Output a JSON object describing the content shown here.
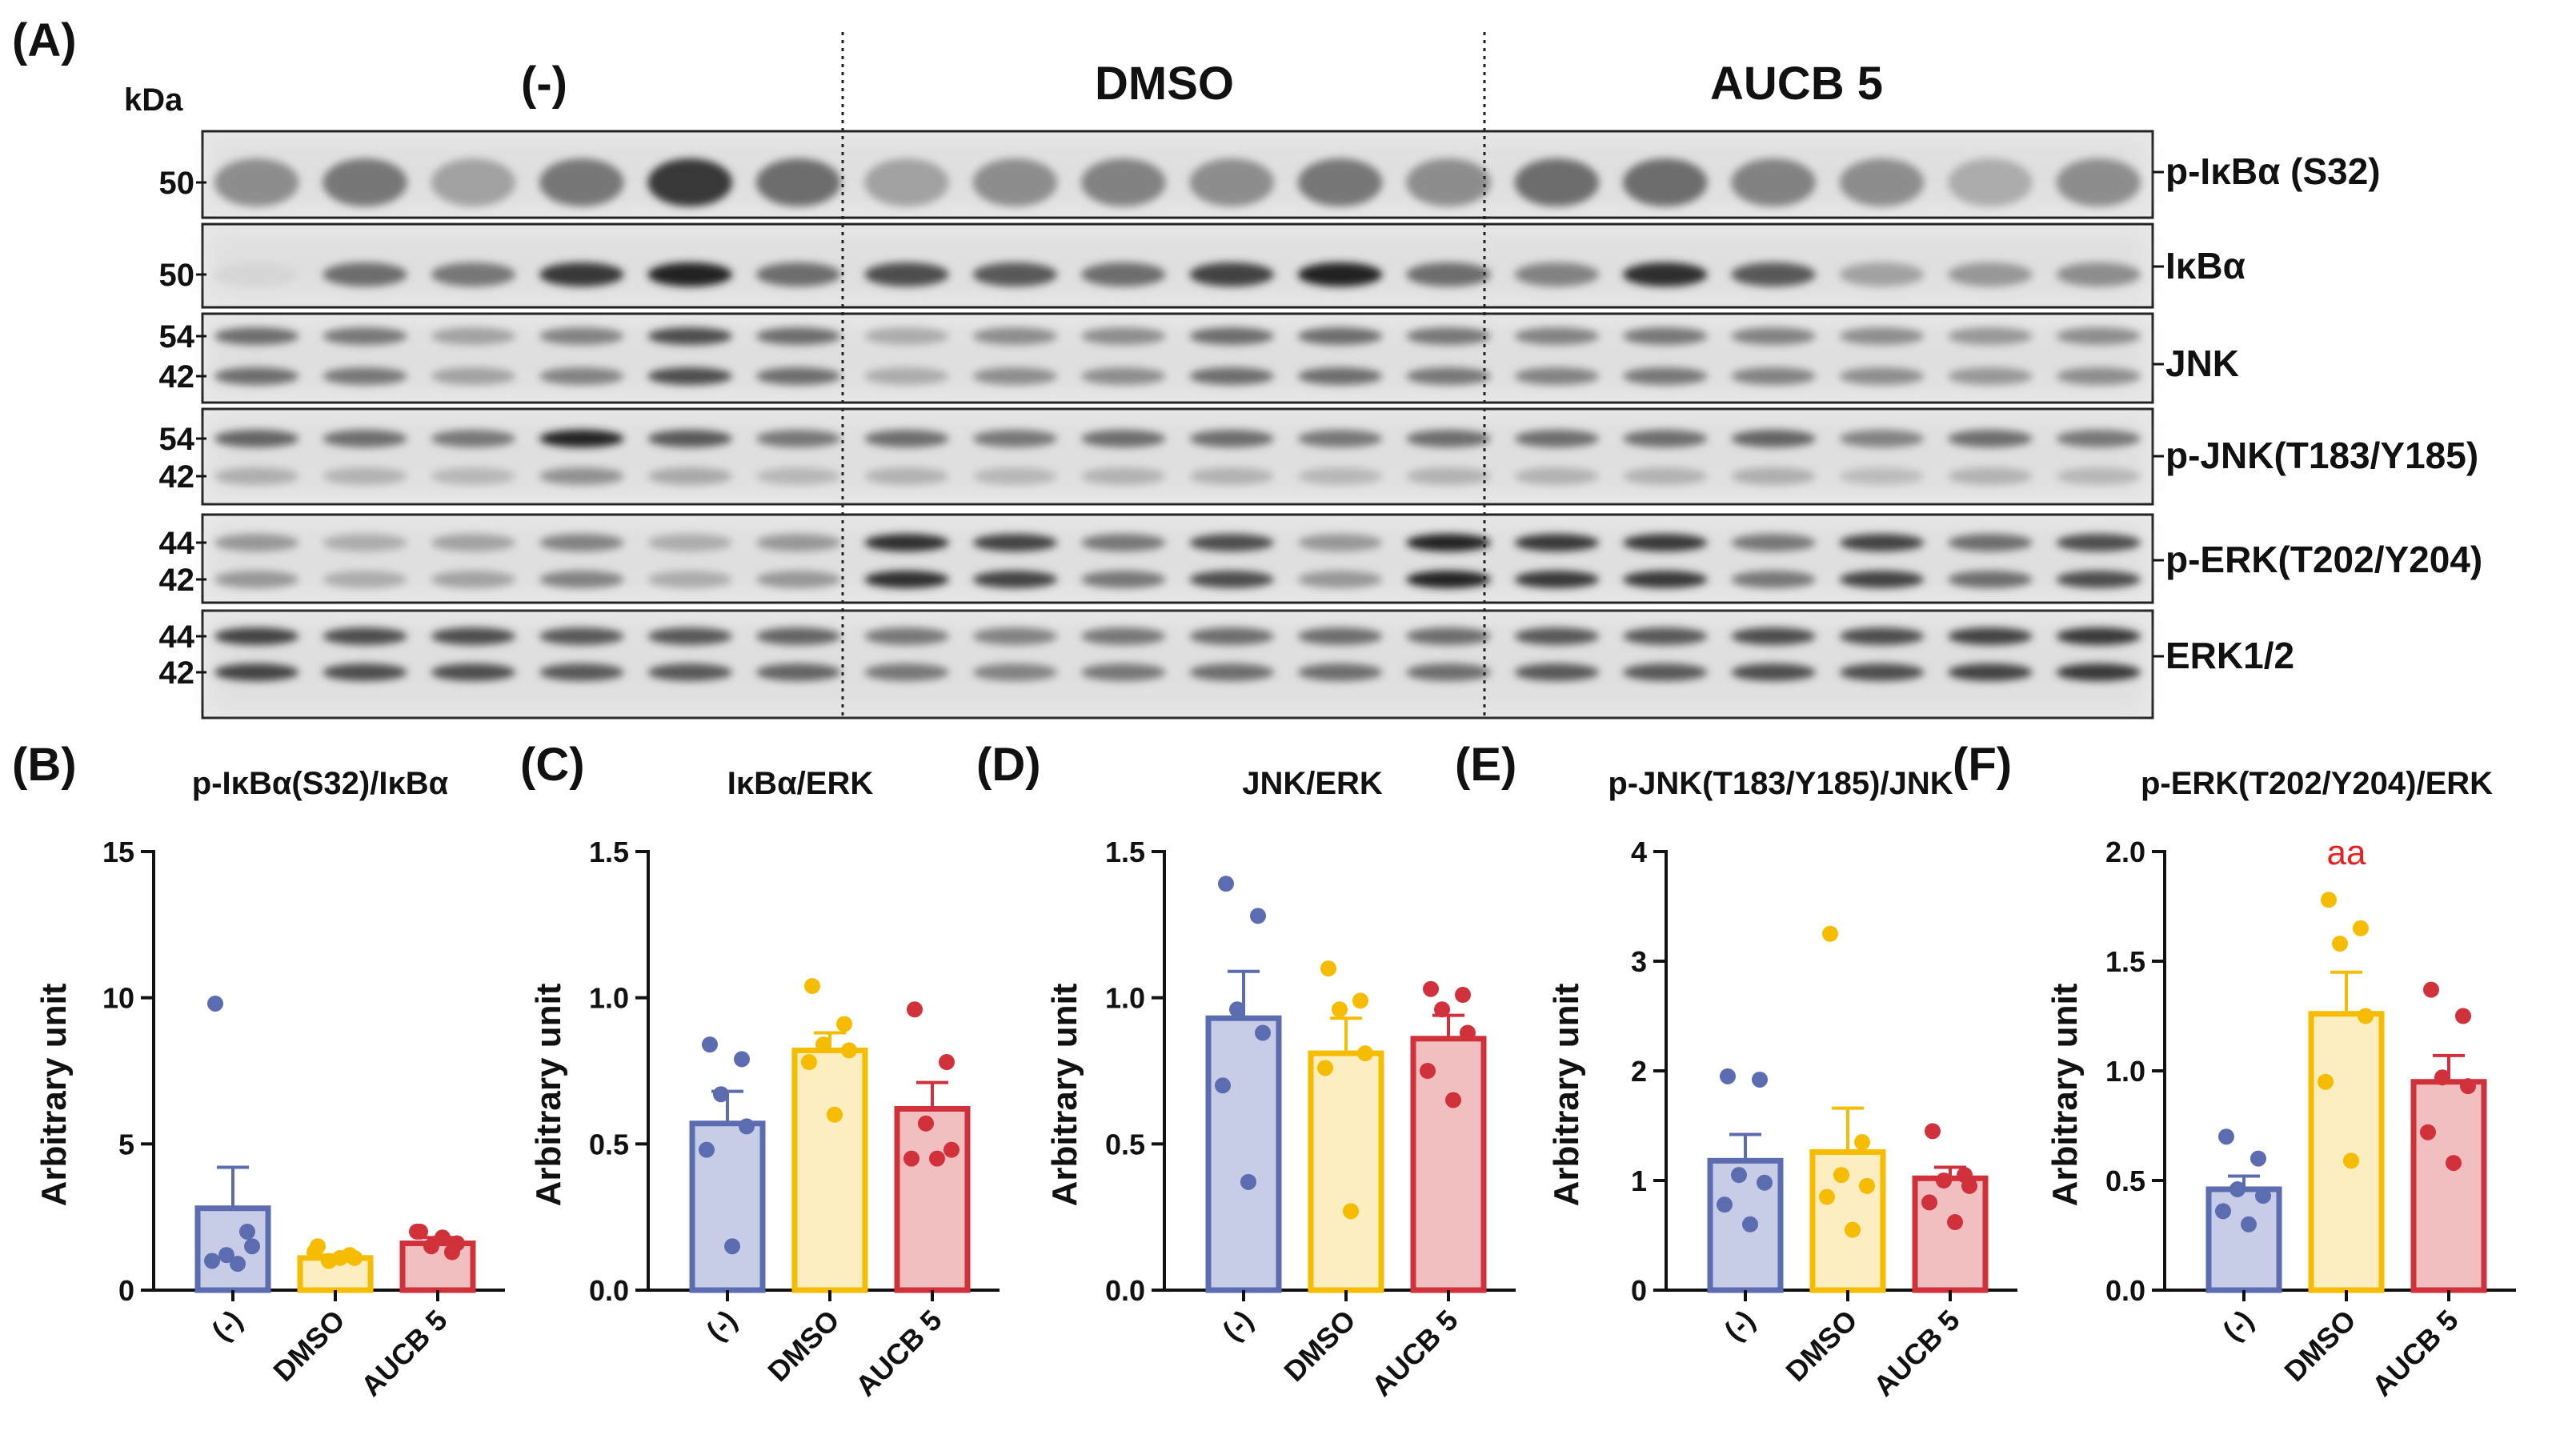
{
  "figure_label": "(A)",
  "blot": {
    "kda_label": "kDa",
    "groups": [
      "(-)",
      "DMSO",
      "AUCB 5"
    ],
    "lanes_per_group": 6,
    "rows": [
      {
        "label": "p-IκBα (S32)",
        "markers": [
          "50"
        ],
        "band_count": 1,
        "intensity": [
          0.45,
          0.55,
          0.35,
          0.55,
          0.85,
          0.6,
          0.35,
          0.45,
          0.5,
          0.45,
          0.55,
          0.45,
          0.6,
          0.6,
          0.5,
          0.45,
          0.3,
          0.45
        ]
      },
      {
        "label": "IκBα",
        "markers": [
          "50"
        ],
        "band_count": 1,
        "intensity": [
          0.1,
          0.6,
          0.55,
          0.85,
          0.95,
          0.6,
          0.75,
          0.7,
          0.6,
          0.8,
          0.95,
          0.6,
          0.5,
          0.9,
          0.7,
          0.35,
          0.4,
          0.45
        ]
      },
      {
        "label": "JNK",
        "markers": [
          "54",
          "42"
        ],
        "band_count": 2,
        "intensity": [
          0.6,
          0.55,
          0.35,
          0.5,
          0.75,
          0.6,
          0.3,
          0.45,
          0.45,
          0.6,
          0.6,
          0.55,
          0.5,
          0.55,
          0.5,
          0.45,
          0.4,
          0.45
        ]
      },
      {
        "label": "p-JNK(T183/Y185)",
        "markers": [
          "54",
          "42"
        ],
        "band_count": 2,
        "intensity": [
          0.65,
          0.6,
          0.55,
          0.95,
          0.7,
          0.55,
          0.6,
          0.55,
          0.6,
          0.6,
          0.55,
          0.6,
          0.6,
          0.6,
          0.65,
          0.5,
          0.6,
          0.55
        ]
      },
      {
        "label": "p-ERK(T202/Y204)",
        "markers": [
          "44",
          "42"
        ],
        "band_count": 2,
        "intensity": [
          0.4,
          0.3,
          0.35,
          0.5,
          0.3,
          0.4,
          0.9,
          0.8,
          0.55,
          0.75,
          0.4,
          0.95,
          0.85,
          0.85,
          0.55,
          0.8,
          0.6,
          0.75
        ]
      },
      {
        "label": "ERK1/2",
        "markers": [
          "44",
          "42"
        ],
        "band_count": 2,
        "intensity": [
          0.8,
          0.75,
          0.75,
          0.7,
          0.7,
          0.65,
          0.55,
          0.5,
          0.55,
          0.6,
          0.6,
          0.6,
          0.7,
          0.7,
          0.75,
          0.75,
          0.8,
          0.85
        ]
      }
    ]
  },
  "colors": {
    "neg": "#5b6db0",
    "neg_fill": "#c7cde6",
    "dmso": "#f5bc00",
    "dmso_fill": "#fdeec2",
    "aucb": "#d0313a",
    "aucb_fill": "#f2bfc1",
    "sig": "#e8201f"
  },
  "chart_data": [
    {
      "panel": "(B)",
      "type": "bar",
      "title": "p-IκBα(S32)/IκBα",
      "ylabel": "Arbitrary unit",
      "categories": [
        "(-)",
        "DMSO",
        "AUCB 5"
      ],
      "ylim": [
        0,
        15
      ],
      "yticks": [
        "0",
        "5",
        "10",
        "15"
      ],
      "values": [
        2.8,
        1.1,
        1.6
      ],
      "sem": [
        1.4,
        0.1,
        0.2
      ],
      "points": [
        [
          9.8,
          2.0,
          1.2,
          1.5,
          1.0,
          0.9
        ],
        [
          1.5,
          1.2,
          1.0,
          1.1,
          1.3,
          1.1
        ],
        [
          2.0,
          1.3,
          1.5,
          1.6,
          2.0,
          1.8
        ]
      ],
      "annotation": ""
    },
    {
      "panel": "(C)",
      "type": "bar",
      "title": "IκBα/ERK",
      "ylabel": "Arbitrary unit",
      "categories": [
        "(-)",
        "DMSO",
        "AUCB 5"
      ],
      "ylim": [
        0,
        1.5
      ],
      "yticks": [
        "0.0",
        "0.5",
        "1.0",
        "1.5"
      ],
      "values": [
        0.57,
        0.82,
        0.62
      ],
      "sem": [
        0.11,
        0.06,
        0.09
      ],
      "points": [
        [
          0.84,
          0.79,
          0.67,
          0.56,
          0.48,
          0.15
        ],
        [
          1.04,
          0.91,
          0.84,
          0.82,
          0.78,
          0.6
        ],
        [
          0.96,
          0.78,
          0.57,
          0.48,
          0.45,
          0.45
        ]
      ],
      "annotation": ""
    },
    {
      "panel": "(D)",
      "type": "bar",
      "title": "JNK/ERK",
      "ylabel": "Arbitrary unit",
      "categories": [
        "(-)",
        "DMSO",
        "AUCB 5"
      ],
      "ylim": [
        0,
        1.5
      ],
      "yticks": [
        "0.0",
        "0.5",
        "1.0",
        "1.5"
      ],
      "values": [
        0.93,
        0.81,
        0.86
      ],
      "sem": [
        0.16,
        0.12,
        0.08
      ],
      "points": [
        [
          1.39,
          1.28,
          0.96,
          0.88,
          0.7,
          0.37
        ],
        [
          1.1,
          0.99,
          0.96,
          0.81,
          0.76,
          0.27
        ],
        [
          1.03,
          1.01,
          0.96,
          0.88,
          0.75,
          0.65
        ]
      ],
      "annotation": ""
    },
    {
      "panel": "(E)",
      "type": "bar",
      "title": "p-JNK(T183/Y185)/JNK",
      "ylabel": "Arbitrary unit",
      "categories": [
        "(-)",
        "DMSO",
        "AUCB 5"
      ],
      "ylim": [
        0,
        4
      ],
      "yticks": [
        "0",
        "1",
        "2",
        "3",
        "4"
      ],
      "values": [
        1.18,
        1.26,
        1.02
      ],
      "sem": [
        0.24,
        0.4,
        0.1
      ],
      "points": [
        [
          1.95,
          1.92,
          1.05,
          0.98,
          0.78,
          0.6
        ],
        [
          3.25,
          1.35,
          1.05,
          0.95,
          0.85,
          0.55
        ],
        [
          1.45,
          1.05,
          1.0,
          0.95,
          0.8,
          0.62
        ]
      ],
      "annotation": ""
    },
    {
      "panel": "(F)",
      "type": "bar",
      "title": "p-ERK(T202/Y204)/ERK",
      "ylabel": "Arbitrary unit",
      "categories": [
        "(-)",
        "DMSO",
        "AUCB 5"
      ],
      "ylim": [
        0,
        2.0
      ],
      "yticks": [
        "0.0",
        "0.5",
        "1.0",
        "1.5",
        "2.0"
      ],
      "values": [
        0.46,
        1.26,
        0.95
      ],
      "sem": [
        0.06,
        0.19,
        0.12
      ],
      "points": [
        [
          0.7,
          0.6,
          0.46,
          0.43,
          0.36,
          0.3
        ],
        [
          1.78,
          1.65,
          1.58,
          1.25,
          0.95,
          0.59
        ],
        [
          1.37,
          1.25,
          0.97,
          0.93,
          0.72,
          0.58
        ]
      ],
      "annotation": "aa",
      "annotation_index": 1
    }
  ]
}
